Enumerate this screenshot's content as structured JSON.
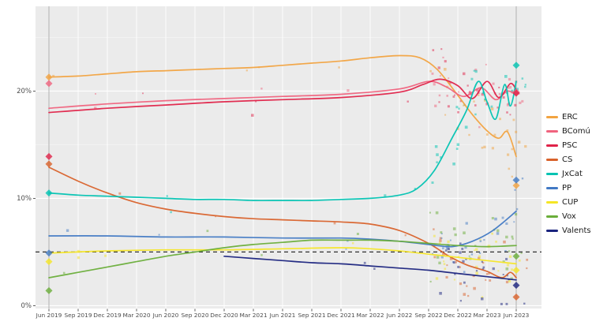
{
  "chart_data": {
    "type": "line",
    "title": "",
    "xlabel": "",
    "ylabel": "",
    "grid": true,
    "legend_position": "right",
    "ylim": [
      0,
      28
    ],
    "y_tick_values": [
      0,
      10,
      20
    ],
    "y_ticks": [
      "0%",
      "10%",
      "20%"
    ],
    "y_minor_values": [
      5,
      15,
      25
    ],
    "x_ticks": [
      "Jun 2019",
      "Sep 2019",
      "Dec 2019",
      "Mar 2020",
      "Jun 2020",
      "Sep 2020",
      "Dec 2020",
      "Mar 2021",
      "Jun 2021",
      "Sep 2021",
      "Dec 2021",
      "Mar 2022",
      "Jun 2022",
      "Sep 2022",
      "Dec 2022",
      "Mar 2023",
      "Jun 2023"
    ],
    "threshold_pct": 5,
    "election_lines_t": [
      0,
      16
    ],
    "series": [
      {
        "name": "ERC",
        "color": "#F2A340",
        "result_jun_2019": 21.3,
        "result_jun_2023": 11.2,
        "points": [
          [
            0,
            21.3
          ],
          [
            1,
            21.4
          ],
          [
            2,
            21.6
          ],
          [
            3,
            21.8
          ],
          [
            4,
            21.9
          ],
          [
            5,
            22.0
          ],
          [
            6,
            22.1
          ],
          [
            7,
            22.2
          ],
          [
            8,
            22.4
          ],
          [
            9,
            22.6
          ],
          [
            10,
            22.8
          ],
          [
            11,
            23.1
          ],
          [
            12,
            23.3
          ],
          [
            12.7,
            23.1
          ],
          [
            13.3,
            22.0
          ],
          [
            14,
            19.6
          ],
          [
            14.5,
            17.8
          ],
          [
            15,
            16.3
          ],
          [
            15.4,
            15.6
          ],
          [
            15.7,
            16.2
          ],
          [
            16,
            13.9
          ]
        ]
      },
      {
        "name": "BComú",
        "color": "#F0637E",
        "result_jun_2019": 20.7,
        "result_jun_2023": 19.9,
        "points": [
          [
            0,
            18.4
          ],
          [
            2,
            18.8
          ],
          [
            4,
            19.1
          ],
          [
            6,
            19.3
          ],
          [
            8,
            19.5
          ],
          [
            10,
            19.7
          ],
          [
            12,
            20.2
          ],
          [
            13,
            20.9
          ],
          [
            13.6,
            20.4
          ],
          [
            14.2,
            19.5
          ],
          [
            14.8,
            20.3
          ],
          [
            15.3,
            19.2
          ],
          [
            15.7,
            20.0
          ],
          [
            16,
            19.6
          ]
        ]
      },
      {
        "name": "PSC",
        "color": "#E02349",
        "result_jun_2019": 13.9,
        "result_jun_2023": 19.8,
        "points": [
          [
            0,
            18.0
          ],
          [
            2,
            18.4
          ],
          [
            4,
            18.7
          ],
          [
            6,
            19.0
          ],
          [
            8,
            19.2
          ],
          [
            10,
            19.4
          ],
          [
            12,
            19.9
          ],
          [
            12.8,
            20.6
          ],
          [
            13.4,
            21.1
          ],
          [
            14,
            20.5
          ],
          [
            14.5,
            19.3
          ],
          [
            15,
            20.9
          ],
          [
            15.4,
            19.4
          ],
          [
            15.8,
            20.7
          ],
          [
            16,
            20.1
          ]
        ]
      },
      {
        "name": "CS",
        "color": "#D9622B",
        "result_jun_2019": 13.2,
        "result_jun_2023": 0.8,
        "points": [
          [
            0,
            12.9
          ],
          [
            1,
            11.6
          ],
          [
            2,
            10.5
          ],
          [
            3,
            9.6
          ],
          [
            4,
            9.0
          ],
          [
            5,
            8.6
          ],
          [
            6,
            8.3
          ],
          [
            7,
            8.1
          ],
          [
            8,
            8.0
          ],
          [
            9,
            7.9
          ],
          [
            10,
            7.8
          ],
          [
            11,
            7.6
          ],
          [
            12,
            7.0
          ],
          [
            13,
            5.8
          ],
          [
            13.7,
            4.6
          ],
          [
            14.3,
            3.8
          ],
          [
            15,
            3.2
          ],
          [
            15.5,
            2.6
          ],
          [
            15.8,
            3.1
          ],
          [
            16,
            2.6
          ]
        ]
      },
      {
        "name": "JxCat",
        "color": "#00C3B2",
        "result_jun_2019": 10.5,
        "result_jun_2023": 22.4,
        "points": [
          [
            0,
            10.5
          ],
          [
            1,
            10.3
          ],
          [
            2,
            10.2
          ],
          [
            3,
            10.1
          ],
          [
            4,
            10.0
          ],
          [
            5,
            9.9
          ],
          [
            6,
            9.9
          ],
          [
            7,
            9.8
          ],
          [
            8,
            9.8
          ],
          [
            9,
            9.8
          ],
          [
            10,
            9.9
          ],
          [
            11,
            10.0
          ],
          [
            12,
            10.3
          ],
          [
            12.6,
            10.9
          ],
          [
            13.2,
            12.6
          ],
          [
            13.8,
            15.6
          ],
          [
            14.3,
            18.2
          ],
          [
            14.7,
            20.9
          ],
          [
            15.0,
            19.0
          ],
          [
            15.3,
            17.4
          ],
          [
            15.6,
            20.6
          ],
          [
            15.8,
            18.6
          ],
          [
            16,
            20.9
          ]
        ]
      },
      {
        "name": "PP",
        "color": "#4179C4",
        "result_jun_2019": 4.9,
        "result_jun_2023": 11.7,
        "points": [
          [
            0,
            6.5
          ],
          [
            2,
            6.5
          ],
          [
            4,
            6.4
          ],
          [
            6,
            6.4
          ],
          [
            8,
            6.3
          ],
          [
            10,
            6.3
          ],
          [
            11,
            6.2
          ],
          [
            12,
            6.0
          ],
          [
            13,
            5.7
          ],
          [
            13.8,
            5.5
          ],
          [
            14.5,
            6.0
          ],
          [
            15.2,
            7.0
          ],
          [
            16,
            8.8
          ]
        ]
      },
      {
        "name": "CUP",
        "color": "#F5E625",
        "result_jun_2019": 4.1,
        "result_jun_2023": 3.3,
        "points": [
          [
            0,
            4.9
          ],
          [
            2,
            5.1
          ],
          [
            4,
            5.2
          ],
          [
            6,
            5.2
          ],
          [
            8,
            5.3
          ],
          [
            10,
            5.4
          ],
          [
            11,
            5.3
          ],
          [
            12,
            5.1
          ],
          [
            13,
            4.8
          ],
          [
            14,
            4.5
          ],
          [
            15,
            4.2
          ],
          [
            16,
            3.9
          ]
        ]
      },
      {
        "name": "Vox",
        "color": "#6AAE3A",
        "result_jun_2019": 1.4,
        "result_jun_2023": 4.6,
        "points": [
          [
            0,
            2.6
          ],
          [
            1,
            3.1
          ],
          [
            2,
            3.6
          ],
          [
            3,
            4.1
          ],
          [
            4,
            4.6
          ],
          [
            5,
            5.0
          ],
          [
            6,
            5.4
          ],
          [
            7,
            5.7
          ],
          [
            8,
            5.9
          ],
          [
            9,
            6.1
          ],
          [
            10,
            6.1
          ],
          [
            11,
            6.1
          ],
          [
            12,
            6.0
          ],
          [
            13,
            5.8
          ],
          [
            14,
            5.6
          ],
          [
            15,
            5.5
          ],
          [
            16,
            5.6
          ]
        ]
      },
      {
        "name": "Valents",
        "color": "#1A237E",
        "result_jun_2019": null,
        "result_jun_2023": 1.9,
        "points": [
          [
            6,
            4.6
          ],
          [
            7,
            4.4
          ],
          [
            8,
            4.2
          ],
          [
            9,
            4.0
          ],
          [
            10,
            3.9
          ],
          [
            11,
            3.7
          ],
          [
            12,
            3.5
          ],
          [
            13,
            3.3
          ],
          [
            14,
            3.0
          ],
          [
            15,
            2.7
          ],
          [
            16,
            2.4
          ]
        ]
      }
    ],
    "scatter_config": {
      "seed": 7,
      "early_count": 4,
      "late_count": 26,
      "early_jitter": 1.2,
      "late_jitter": 2.1
    }
  },
  "legend": {
    "items": [
      "ERC",
      "BComú",
      "PSC",
      "CS",
      "JxCat",
      "PP",
      "CUP",
      "Vox",
      "Valents"
    ]
  }
}
